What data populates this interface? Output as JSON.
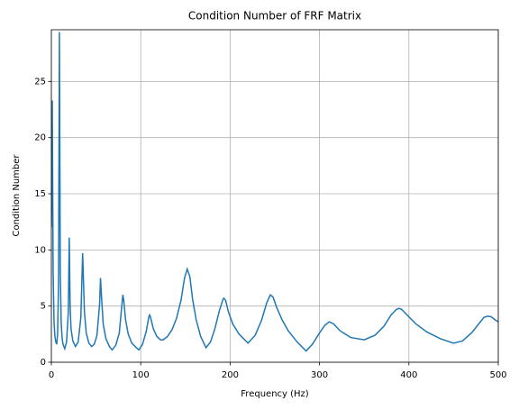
{
  "chart_data": {
    "type": "line",
    "title": "Condition Number of FRF Matrix",
    "xlabel": "Frequency (Hz)",
    "ylabel": "Condition Number",
    "x": [
      0,
      1,
      2,
      3,
      4,
      5,
      6,
      7,
      8,
      9,
      10,
      11,
      12,
      13,
      15,
      17,
      19,
      20,
      21,
      22,
      24,
      27,
      30,
      33,
      35,
      37,
      39,
      42,
      45,
      48,
      51,
      54,
      55,
      56,
      58,
      61,
      65,
      68,
      72,
      76,
      79,
      80,
      81,
      83,
      86,
      90,
      95,
      98,
      102,
      106,
      109,
      110,
      111,
      114,
      118,
      122,
      125,
      130,
      135,
      140,
      145,
      149,
      152,
      155,
      158,
      162,
      167,
      173,
      178,
      183,
      188,
      192,
      193,
      195,
      198,
      203,
      210,
      220,
      228,
      235,
      241,
      245,
      248,
      252,
      258,
      265,
      275,
      285,
      292,
      300,
      306,
      311,
      316,
      323,
      335,
      350,
      362,
      372,
      380,
      386,
      389,
      392,
      398,
      408,
      420,
      435,
      450,
      460,
      470,
      478,
      484,
      488,
      492,
      496,
      500
    ],
    "series": [
      {
        "name": "Condition Number",
        "color": "#1f77b4",
        "values": [
          12,
          23.3,
          8,
          3.5,
          2.3,
          1.8,
          1.6,
          2.5,
          7,
          29.4,
          8,
          3.5,
          2.2,
          1.6,
          1.2,
          1.8,
          4.5,
          11.1,
          5,
          3,
          1.9,
          1.4,
          1.8,
          4,
          9.7,
          4.5,
          2.6,
          1.7,
          1.4,
          1.6,
          2.4,
          5.2,
          7.5,
          6,
          3.4,
          2.1,
          1.4,
          1.1,
          1.5,
          2.6,
          5.2,
          6.0,
          5.5,
          3.8,
          2.5,
          1.7,
          1.3,
          1.1,
          1.6,
          2.7,
          4,
          4.2,
          4.0,
          3.0,
          2.3,
          2.0,
          2.0,
          2.3,
          2.9,
          3.9,
          5.5,
          7.5,
          8.3,
          7.6,
          5.6,
          3.8,
          2.3,
          1.3,
          1.8,
          3.0,
          4.6,
          5.6,
          5.7,
          5.5,
          4.5,
          3.4,
          2.5,
          1.7,
          2.4,
          3.7,
          5.3,
          6.0,
          5.8,
          4.9,
          3.8,
          2.8,
          1.8,
          1.0,
          1.6,
          2.6,
          3.3,
          3.6,
          3.4,
          2.8,
          2.2,
          2.0,
          2.4,
          3.2,
          4.2,
          4.7,
          4.8,
          4.7,
          4.2,
          3.4,
          2.7,
          2.1,
          1.7,
          1.9,
          2.6,
          3.4,
          4.0,
          4.1,
          4.05,
          3.8,
          3.6
        ]
      }
    ],
    "xlim": [
      0,
      500
    ],
    "xticks": [
      0,
      100,
      200,
      300,
      400,
      500
    ],
    "ylim": [
      0,
      29.6
    ],
    "yticks": [
      0,
      5,
      10,
      15,
      20,
      25
    ],
    "grid": true
  }
}
